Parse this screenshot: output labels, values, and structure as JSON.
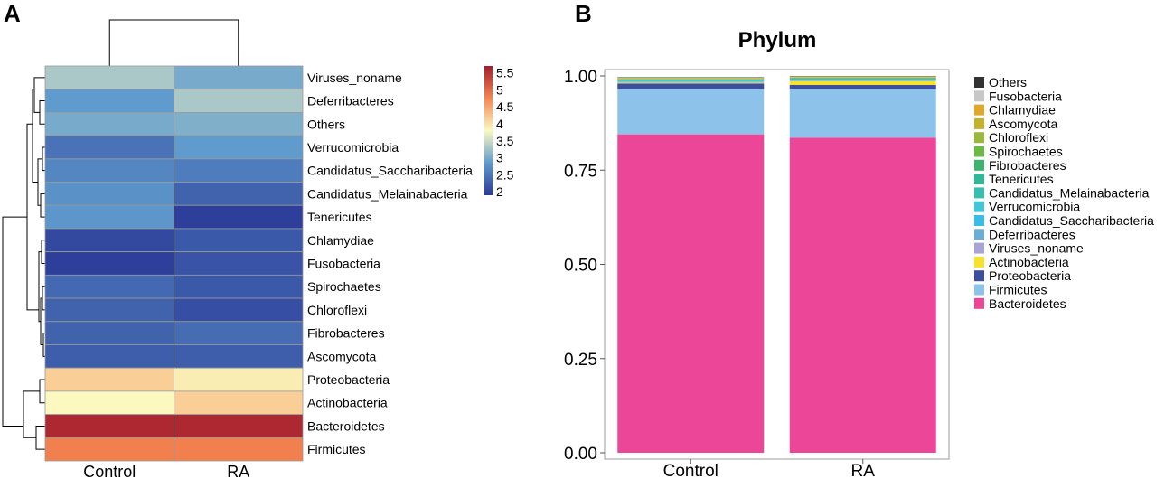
{
  "panels": {
    "a": "A",
    "b": "B"
  },
  "chart_data": [
    {
      "type": "heatmap",
      "title": "",
      "columns": [
        "Control",
        "RA"
      ],
      "rows": [
        "Viruses_noname",
        "Deferribacteres",
        "Others",
        "Verrucomicrobia",
        "Candidatus_Saccharibacteria",
        "Candidatus_Melainabacteria",
        "Tenericutes",
        "Chlamydiae",
        "Fusobacteria",
        "Spirochaetes",
        "Chloroflexi",
        "Fibrobacteres",
        "Ascomycota",
        "Proteobacteria",
        "Actinobacteria",
        "Bacteroidetes",
        "Firmicutes"
      ],
      "values": [
        [
          3.3,
          3.0
        ],
        [
          2.85,
          3.3
        ],
        [
          3.0,
          3.05
        ],
        [
          2.45,
          2.85
        ],
        [
          2.65,
          2.55
        ],
        [
          2.75,
          2.3
        ],
        [
          2.8,
          1.95
        ],
        [
          2.05,
          2.2
        ],
        [
          1.95,
          2.15
        ],
        [
          2.35,
          2.2
        ],
        [
          2.3,
          2.1
        ],
        [
          2.3,
          2.4
        ],
        [
          2.25,
          2.25
        ],
        [
          4.15,
          3.9
        ],
        [
          3.8,
          4.15
        ],
        [
          5.6,
          5.6
        ],
        [
          4.8,
          4.8
        ]
      ],
      "colorbar": {
        "ticks": [
          5.5,
          5,
          4.5,
          4,
          3.5,
          3,
          2.5,
          2
        ],
        "range": [
          1.9,
          5.7
        ]
      },
      "colors": {
        "low": "#2b3a98",
        "midlow": "#5f9bcd",
        "mid": "#fbf9c0",
        "midhigh": "#f58650",
        "high": "#a51d2d"
      }
    },
    {
      "type": "bar",
      "stacked": true,
      "title": "Phylum",
      "categories": [
        "Control",
        "RA"
      ],
      "ylim": [
        0,
        1.0
      ],
      "yticks": [
        "0.00",
        "0.25",
        "0.50",
        "0.75",
        "1.00"
      ],
      "series": [
        {
          "name": "Bacteroidetes",
          "color": "#ec4699",
          "values": [
            0.845,
            0.836
          ]
        },
        {
          "name": "Firmicutes",
          "color": "#8dc3ea",
          "values": [
            0.12,
            0.13
          ]
        },
        {
          "name": "Proteobacteria",
          "color": "#3c4ea0",
          "values": [
            0.015,
            0.01
          ]
        },
        {
          "name": "Actinobacteria",
          "color": "#f7e12d",
          "values": [
            0.002,
            0.01
          ]
        },
        {
          "name": "Viruses_noname",
          "color": "#a9a3d6",
          "values": [
            0.001,
            0.001
          ]
        },
        {
          "name": "Deferribacteres",
          "color": "#6aaed6",
          "values": [
            0.001,
            0.001
          ]
        },
        {
          "name": "Candidatus_Saccharibacteria",
          "color": "#37bde8",
          "values": [
            0.001,
            0.001
          ]
        },
        {
          "name": "Verrucomicrobia",
          "color": "#3ec7d8",
          "values": [
            0.002,
            0.001
          ]
        },
        {
          "name": "Candidatus_Melainabacteria",
          "color": "#35bfb0",
          "values": [
            0.001,
            0.001
          ]
        },
        {
          "name": "Tenericutes",
          "color": "#2fb797",
          "values": [
            0.002,
            0.002
          ]
        },
        {
          "name": "Fibrobacteres",
          "color": "#3cb46e",
          "values": [
            0.001,
            0.001
          ]
        },
        {
          "name": "Spirochaetes",
          "color": "#6cba45",
          "values": [
            0.001,
            0.001
          ]
        },
        {
          "name": "Chloroflexi",
          "color": "#9ab93a",
          "values": [
            0.001,
            0.001
          ]
        },
        {
          "name": "Ascomycota",
          "color": "#c6b12b",
          "values": [
            0.001,
            0.001
          ]
        },
        {
          "name": "Chlamydiae",
          "color": "#e0a82a",
          "values": [
            0.001,
            0.001
          ]
        },
        {
          "name": "Fusobacteria",
          "color": "#c7c7c7",
          "values": [
            0.001,
            0.001
          ]
        },
        {
          "name": "Others",
          "color": "#333333",
          "values": [
            0.001,
            0.001
          ]
        }
      ],
      "legend": [
        "Others",
        "Fusobacteria",
        "Chlamydiae",
        "Ascomycota",
        "Chloroflexi",
        "Spirochaetes",
        "Fibrobacteres",
        "Tenericutes",
        "Candidatus_Melainabacteria",
        "Verrucomicrobia",
        "Candidatus_Saccharibacteria",
        "Deferribacteres",
        "Viruses_noname",
        "Actinobacteria",
        "Proteobacteria",
        "Firmicutes",
        "Bacteroidetes"
      ]
    }
  ]
}
